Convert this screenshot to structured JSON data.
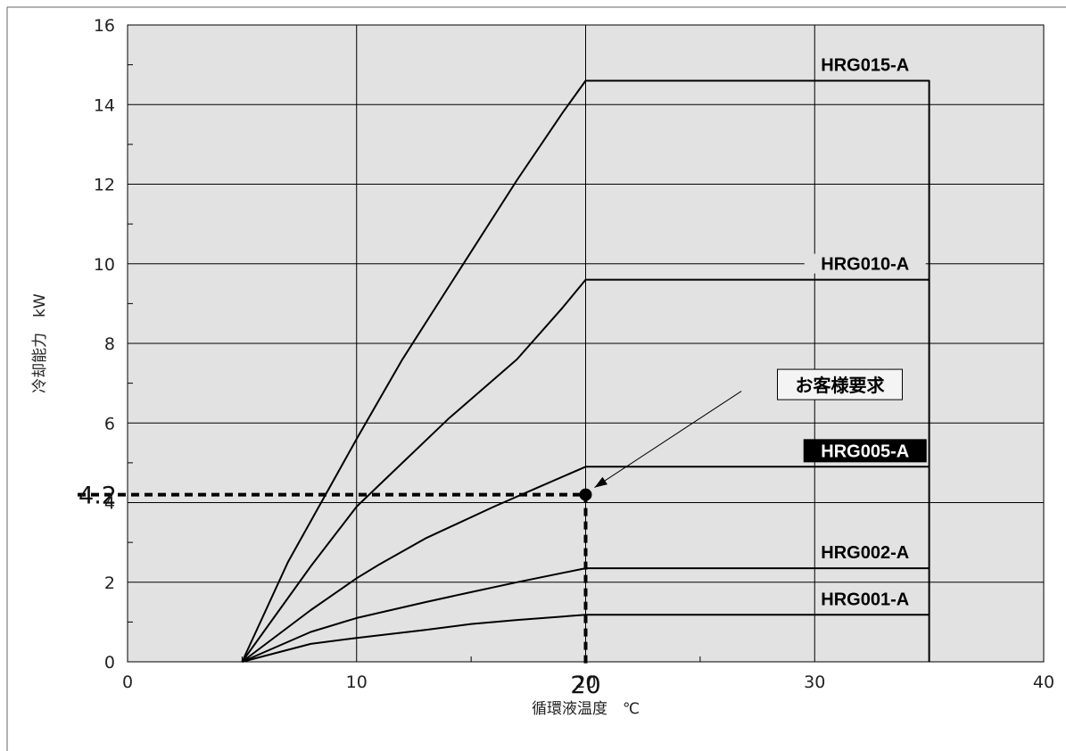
{
  "chart_data": {
    "type": "line",
    "title": "",
    "xlabel": "循環液温度　℃",
    "ylabel": "冷却能力　kW",
    "xlim": [
      0,
      40
    ],
    "ylim": [
      0,
      16
    ],
    "x_ticks": [
      0,
      10,
      20,
      30,
      40
    ],
    "y_ticks": [
      0,
      2,
      4,
      6,
      8,
      10,
      12,
      14,
      16
    ],
    "grid": true,
    "background": "#e2e2e2",
    "line_color": "#000000",
    "series": [
      {
        "name": "HRG015-A",
        "highlight": false,
        "x": [
          5,
          7,
          10,
          12,
          14,
          17,
          19,
          20,
          35,
          35
        ],
        "y": [
          0,
          2.5,
          5.6,
          7.6,
          9.4,
          12.1,
          13.8,
          14.6,
          14.6,
          0
        ]
      },
      {
        "name": "HRG010-A",
        "highlight": false,
        "x": [
          5,
          8,
          10,
          12,
          14,
          17,
          19,
          20,
          35
        ],
        "y": [
          0,
          2.4,
          3.9,
          5.0,
          6.1,
          7.6,
          8.9,
          9.6,
          9.6
        ]
      },
      {
        "name": "HRG005-A",
        "highlight": true,
        "x": [
          5,
          8,
          10,
          11,
          13,
          16,
          18,
          20,
          35
        ],
        "y": [
          0,
          1.3,
          2.1,
          2.45,
          3.1,
          3.9,
          4.4,
          4.9,
          4.9
        ]
      },
      {
        "name": "HRG002-A",
        "highlight": false,
        "x": [
          5,
          8,
          10,
          13,
          15,
          17,
          20,
          35
        ],
        "y": [
          0,
          0.75,
          1.1,
          1.5,
          1.75,
          2.0,
          2.35,
          2.35
        ]
      },
      {
        "name": "HRG001-A",
        "highlight": false,
        "x": [
          5,
          8,
          10,
          13,
          15,
          17,
          20,
          35
        ],
        "y": [
          0,
          0.45,
          0.6,
          0.8,
          0.95,
          1.05,
          1.18,
          1.18
        ]
      }
    ],
    "requirement_point": {
      "x": 20,
      "y": 4.2,
      "label": "お客様要求",
      "x_label": "20",
      "y_label": "4.2"
    }
  }
}
